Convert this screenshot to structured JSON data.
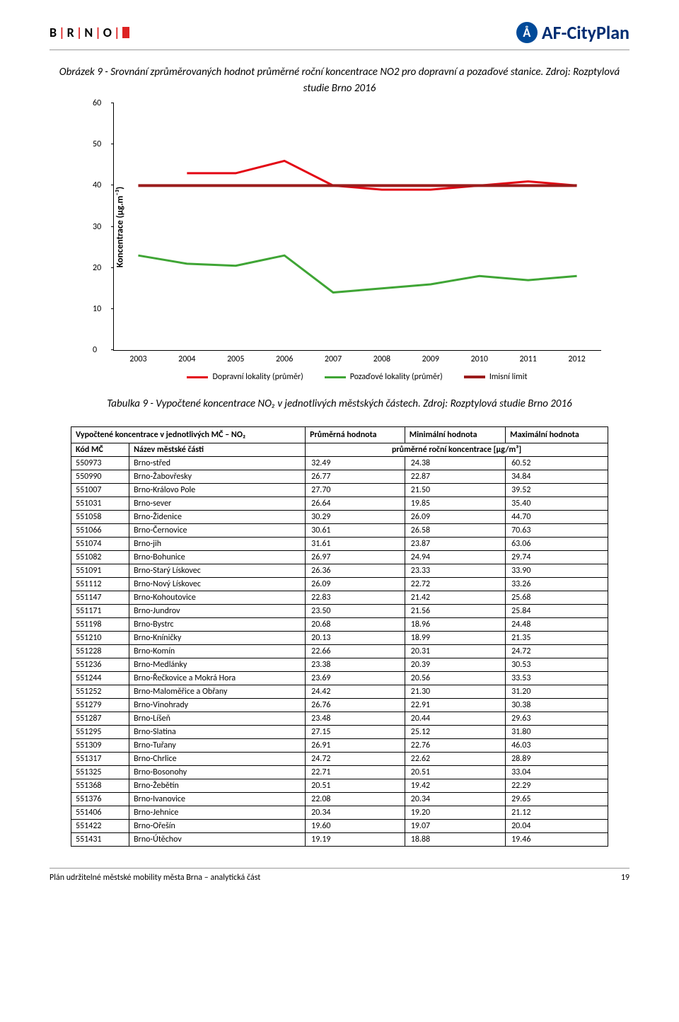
{
  "header": {
    "logo_left_letters": [
      "B",
      "R",
      "N",
      "O"
    ],
    "logo_right": "AF-CityPlan"
  },
  "caption1": "Obrázek 9 - Srovnání zprůměrovaných hodnot průměrné roční koncentrace NO2 pro dopravní a pozaďové stanice. Zdroj: Rozptylová studie Brno 2016",
  "chart": {
    "type": "line",
    "ylabel": "Koncentrace (μg.m⁻³)",
    "ylim": [
      0,
      60
    ],
    "yticks": [
      0,
      10,
      20,
      30,
      40,
      50,
      60
    ],
    "xticks": [
      "2003",
      "2004",
      "2005",
      "2006",
      "2007",
      "2008",
      "2009",
      "2010",
      "2011",
      "2012"
    ],
    "series": [
      {
        "name": "Dopravní lokality (průměr)",
        "color": "#e30613",
        "width": 3,
        "values": [
          null,
          43,
          43,
          46,
          40,
          39,
          39,
          40,
          41,
          40
        ]
      },
      {
        "name": "Pozaďové lokality (průměr)",
        "color": "#3fa535",
        "width": 3,
        "values": [
          23,
          21,
          20.5,
          23,
          14,
          15,
          16,
          18,
          17,
          18
        ]
      },
      {
        "name": "Imisní limit",
        "color": "#9b1c1c",
        "width": 4,
        "values": [
          40,
          40,
          40,
          40,
          40,
          40,
          40,
          40,
          40,
          40
        ]
      }
    ],
    "legend_labels": [
      "Dopravní lokality (průměr)",
      "Pozaďové lokality (průměr)",
      "Imisní limit"
    ]
  },
  "caption2": "Tabulka 9 - Vypočtené koncentrace NO₂ v jednotlivých městských částech. Zdroj: Rozptylová studie Brno 2016",
  "table": {
    "header_main": "Vypočtené koncentrace v jednotlivých MČ – NO₂",
    "header_cols": [
      "Průměrná hodnota",
      "Minimální hodnota",
      "Maximální hodnota"
    ],
    "subheader_left": [
      "Kód MČ",
      "Název městské části"
    ],
    "subheader_right": "průměrné roční koncentrace [μg/m³]",
    "rows": [
      [
        "550973",
        "Brno-střed",
        "32.49",
        "24.38",
        "60.52"
      ],
      [
        "550990",
        "Brno-Žabovřesky",
        "26.77",
        "22.87",
        "34.84"
      ],
      [
        "551007",
        "Brno-Královo Pole",
        "27.70",
        "21.50",
        "39.52"
      ],
      [
        "551031",
        "Brno-sever",
        "26.64",
        "19.85",
        "35.40"
      ],
      [
        "551058",
        "Brno-Židenice",
        "30.29",
        "26.09",
        "44.70"
      ],
      [
        "551066",
        "Brno-Černovice",
        "30.61",
        "26.58",
        "70.63"
      ],
      [
        "551074",
        "Brno-jih",
        "31.61",
        "23.87",
        "63.06"
      ],
      [
        "551082",
        "Brno-Bohunice",
        "26.97",
        "24.94",
        "29.74"
      ],
      [
        "551091",
        "Brno-Starý Lískovec",
        "26.36",
        "23.33",
        "33.90"
      ],
      [
        "551112",
        "Brno-Nový Lískovec",
        "26.09",
        "22.72",
        "33.26"
      ],
      [
        "551147",
        "Brno-Kohoutovice",
        "22.83",
        "21.42",
        "25.68"
      ],
      [
        "551171",
        "Brno-Jundrov",
        "23.50",
        "21.56",
        "25.84"
      ],
      [
        "551198",
        "Brno-Bystrc",
        "20.68",
        "18.96",
        "24.48"
      ],
      [
        "551210",
        "Brno-Kníničky",
        "20.13",
        "18.99",
        "21.35"
      ],
      [
        "551228",
        "Brno-Komín",
        "22.66",
        "20.31",
        "24.72"
      ],
      [
        "551236",
        "Brno-Medlánky",
        "23.38",
        "20.39",
        "30.53"
      ],
      [
        "551244",
        "Brno-Řečkovice a Mokrá Hora",
        "23.69",
        "20.56",
        "33.53"
      ],
      [
        "551252",
        "Brno-Maloměřice a Obřany",
        "24.42",
        "21.30",
        "31.20"
      ],
      [
        "551279",
        "Brno-Vinohrady",
        "26.76",
        "22.91",
        "30.38"
      ],
      [
        "551287",
        "Brno-Líšeň",
        "23.48",
        "20.44",
        "29.63"
      ],
      [
        "551295",
        "Brno-Slatina",
        "27.15",
        "25.12",
        "31.80"
      ],
      [
        "551309",
        "Brno-Tuřany",
        "26.91",
        "22.76",
        "46.03"
      ],
      [
        "551317",
        "Brno-Chrlice",
        "24.72",
        "22.62",
        "28.89"
      ],
      [
        "551325",
        "Brno-Bosonohy",
        "22.71",
        "20.51",
        "33.04"
      ],
      [
        "551368",
        "Brno-Žebětín",
        "20.51",
        "19.42",
        "22.29"
      ],
      [
        "551376",
        "Brno-Ivanovice",
        "22.08",
        "20.34",
        "29.65"
      ],
      [
        "551406",
        "Brno-Jehnice",
        "20.34",
        "19.20",
        "21.12"
      ],
      [
        "551422",
        "Brno-Ořešín",
        "19.60",
        "19.07",
        "20.04"
      ],
      [
        "551431",
        "Brno-Útěchov",
        "19.19",
        "18.88",
        "19.46"
      ]
    ]
  },
  "footer": {
    "text": "Plán udržitelné městské mobility města Brna – analytická část",
    "page": "19"
  }
}
